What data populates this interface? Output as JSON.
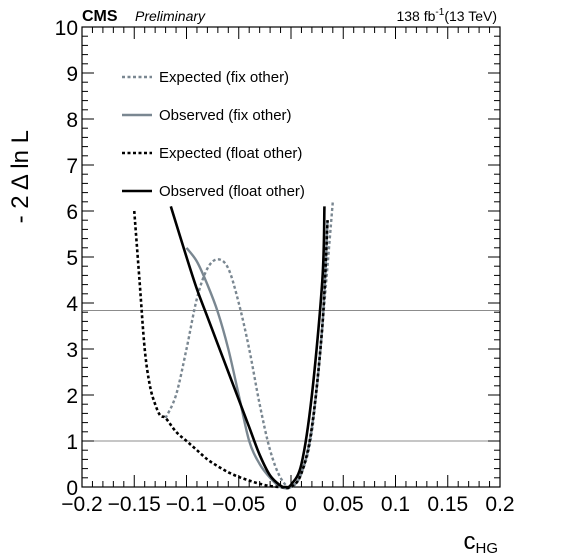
{
  "chart_data": {
    "type": "line",
    "header": {
      "experiment": "CMS",
      "status": "Preliminary",
      "lumi": "138 fb",
      "lumi_exp": "-1",
      "energy": "(13 TeV)"
    },
    "xlabel": "c",
    "xlabel_sub": "HG",
    "ylabel": "- 2 Δ ln L",
    "xlim": [
      -0.2,
      0.2
    ],
    "ylim": [
      0,
      10
    ],
    "xticks": [
      -0.2,
      -0.15,
      -0.1,
      -0.05,
      0,
      0.05,
      0.1,
      0.15,
      0.2
    ],
    "xtick_labels": [
      "−0.2",
      "−0.15",
      "−0.1",
      "−0.05",
      "0",
      "0.05",
      "0.1",
      "0.15",
      "0.2"
    ],
    "yticks": [
      0,
      1,
      2,
      3,
      4,
      5,
      6,
      7,
      8,
      9,
      10
    ],
    "ytick_labels": [
      "0",
      "1",
      "2",
      "3",
      "4",
      "5",
      "6",
      "7",
      "8",
      "9",
      "10"
    ],
    "reference_lines": [
      1,
      3.84
    ],
    "legend_position": "top-left",
    "series": [
      {
        "name": "Expected (fix other)",
        "color": "#7a8791",
        "style": "dotted",
        "points": [
          [
            -0.12,
            1.5
          ],
          [
            -0.11,
            2.0
          ],
          [
            -0.1,
            3.0
          ],
          [
            -0.09,
            4.1
          ],
          [
            -0.08,
            4.75
          ],
          [
            -0.07,
            4.95
          ],
          [
            -0.06,
            4.75
          ],
          [
            -0.05,
            4.0
          ],
          [
            -0.04,
            3.0
          ],
          [
            -0.03,
            1.8
          ],
          [
            -0.02,
            0.8
          ],
          [
            -0.01,
            0.2
          ],
          [
            0.0,
            0.0
          ],
          [
            0.01,
            0.3
          ],
          [
            0.02,
            1.2
          ],
          [
            0.03,
            3.5
          ],
          [
            0.04,
            6.2
          ]
        ]
      },
      {
        "name": "Observed (fix other)",
        "color": "#7a8791",
        "style": "solid",
        "points": [
          [
            -0.1,
            5.2
          ],
          [
            -0.09,
            4.9
          ],
          [
            -0.08,
            4.4
          ],
          [
            -0.07,
            3.8
          ],
          [
            -0.06,
            3.0
          ],
          [
            -0.05,
            2.0
          ],
          [
            -0.04,
            1.0
          ],
          [
            -0.03,
            0.5
          ],
          [
            -0.02,
            0.2
          ],
          [
            -0.01,
            0.0
          ],
          [
            0.0,
            0.0
          ],
          [
            0.01,
            0.3
          ],
          [
            0.02,
            1.3
          ],
          [
            0.03,
            3.5
          ],
          [
            0.035,
            5.8
          ]
        ]
      },
      {
        "name": "Expected (float other)",
        "color": "#000000",
        "style": "dotted",
        "points": [
          [
            -0.15,
            6.0
          ],
          [
            -0.145,
            4.5
          ],
          [
            -0.14,
            3.0
          ],
          [
            -0.135,
            2.2
          ],
          [
            -0.13,
            1.8
          ],
          [
            -0.125,
            1.55
          ],
          [
            -0.12,
            1.5
          ],
          [
            -0.11,
            1.2
          ],
          [
            -0.1,
            1.0
          ],
          [
            -0.09,
            0.8
          ],
          [
            -0.08,
            0.6
          ],
          [
            -0.07,
            0.45
          ],
          [
            -0.06,
            0.32
          ],
          [
            -0.05,
            0.22
          ],
          [
            -0.04,
            0.14
          ],
          [
            -0.03,
            0.07
          ],
          [
            -0.02,
            0.02
          ],
          [
            -0.01,
            0.0
          ],
          [
            0.0,
            0.0
          ],
          [
            0.01,
            0.3
          ],
          [
            0.02,
            1.3
          ],
          [
            0.03,
            3.5
          ],
          [
            0.035,
            5.8
          ]
        ]
      },
      {
        "name": "Observed (float other)",
        "color": "#000000",
        "style": "solid",
        "points": [
          [
            -0.115,
            6.1
          ],
          [
            -0.1,
            5.0
          ],
          [
            -0.09,
            4.3
          ],
          [
            -0.08,
            3.7
          ],
          [
            -0.07,
            3.1
          ],
          [
            -0.06,
            2.5
          ],
          [
            -0.05,
            1.9
          ],
          [
            -0.04,
            1.3
          ],
          [
            -0.03,
            0.7
          ],
          [
            -0.02,
            0.25
          ],
          [
            -0.01,
            0.03
          ],
          [
            -0.005,
            0.0
          ],
          [
            0.0,
            0.05
          ],
          [
            0.01,
            0.5
          ],
          [
            0.02,
            2.0
          ],
          [
            0.03,
            4.5
          ],
          [
            0.032,
            6.1
          ]
        ]
      }
    ]
  }
}
